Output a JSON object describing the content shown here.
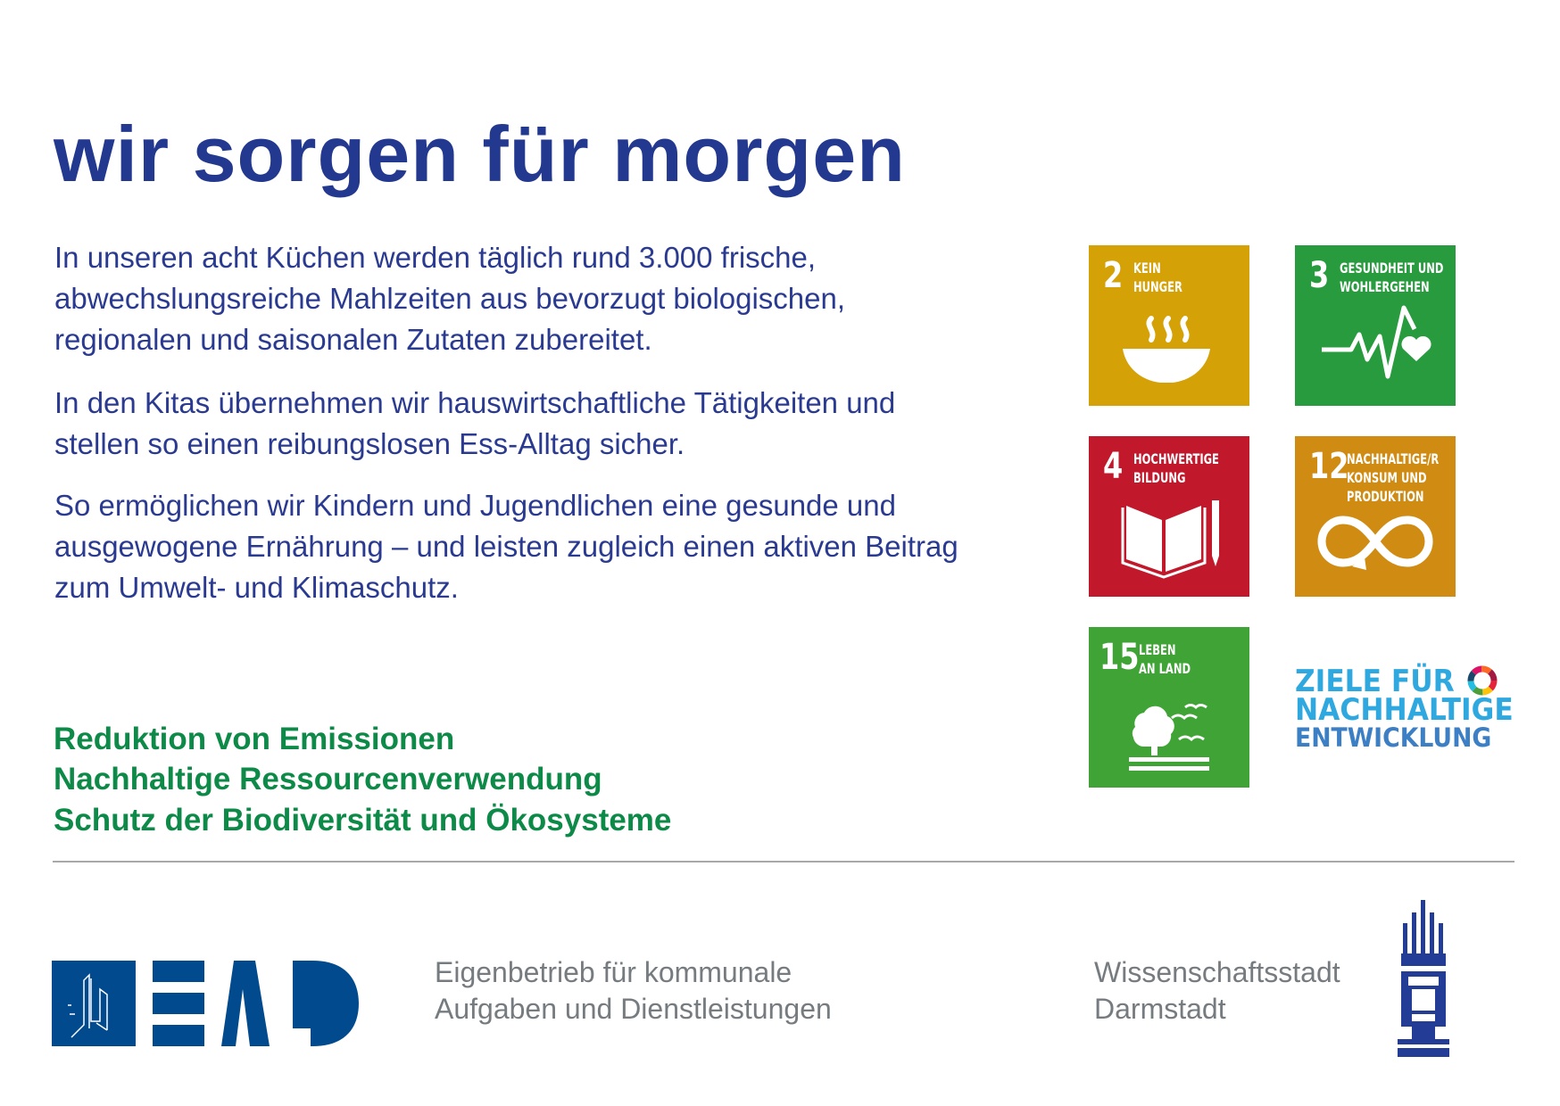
{
  "headline": "wir sorgen für morgen",
  "paragraphs": [
    "In unseren acht Küchen werden täglich rund 3.000 frische, abwechslungsreiche Mahlzeiten aus bevorzugt biologischen, regionalen und saisonalen Zutaten zubereitet.",
    "In den Kitas übernehmen wir hauswirtschaftliche Tätigkeiten und stellen so einen reibungslosen Ess-Alltag sicher.",
    "So ermöglichen wir Kindern und Jugendlichen eine gesunde und ausgewogene Ernährung – und leisten zugleich einen aktiven Beitrag zum Umwelt- und Klimaschutz."
  ],
  "goals": [
    "Reduktion von Emissionen",
    "Nachhaltige Ressourcenverwendung",
    "Schutz der Biodiversität und Ökosysteme"
  ],
  "sdg_tiles": [
    {
      "number": "2",
      "label_lines": [
        "KEIN",
        "HUNGER"
      ],
      "color": "#d4a106",
      "icon": "soup-bowl-icon"
    },
    {
      "number": "3",
      "label_lines": [
        "GESUNDHEIT UND",
        "WOHLERGEHEN"
      ],
      "color": "#279b3e",
      "icon": "heartbeat-icon"
    },
    {
      "number": "4",
      "label_lines": [
        "HOCHWERTIGE",
        "BILDUNG"
      ],
      "color": "#c1182c",
      "icon": "book-pencil-icon"
    },
    {
      "number": "12",
      "label_lines": [
        "NACHHALTIGE/R",
        "KONSUM UND",
        "PRODUKTION"
      ],
      "color": "#d08c12",
      "icon": "infinity-icon"
    },
    {
      "number": "15",
      "label_lines": [
        "LEBEN",
        "AN LAND"
      ],
      "color": "#3fa435",
      "icon": "tree-birds-icon"
    }
  ],
  "sdg_logo": {
    "lines": [
      "ZIELE FÜR",
      "NACHHALTIGE",
      "ENTWICKLUNG"
    ],
    "colors": [
      "#2fa8e0",
      "#2fa8e0",
      "#3d7fc4"
    ]
  },
  "footer": {
    "ead_logo": "EAD",
    "ead_lines": [
      "Eigenbetrieb für kommunale",
      "Aufgaben und Dienstleistungen"
    ],
    "city_lines": [
      "Wissenschaftsstadt",
      "Darmstadt"
    ]
  },
  "colors": {
    "headline": "#23388f",
    "body": "#2a3a90",
    "goals": "#0d8a48",
    "ead_blue": "#024a8e",
    "city_blue": "#233d96",
    "footer_text": "#767b80"
  }
}
